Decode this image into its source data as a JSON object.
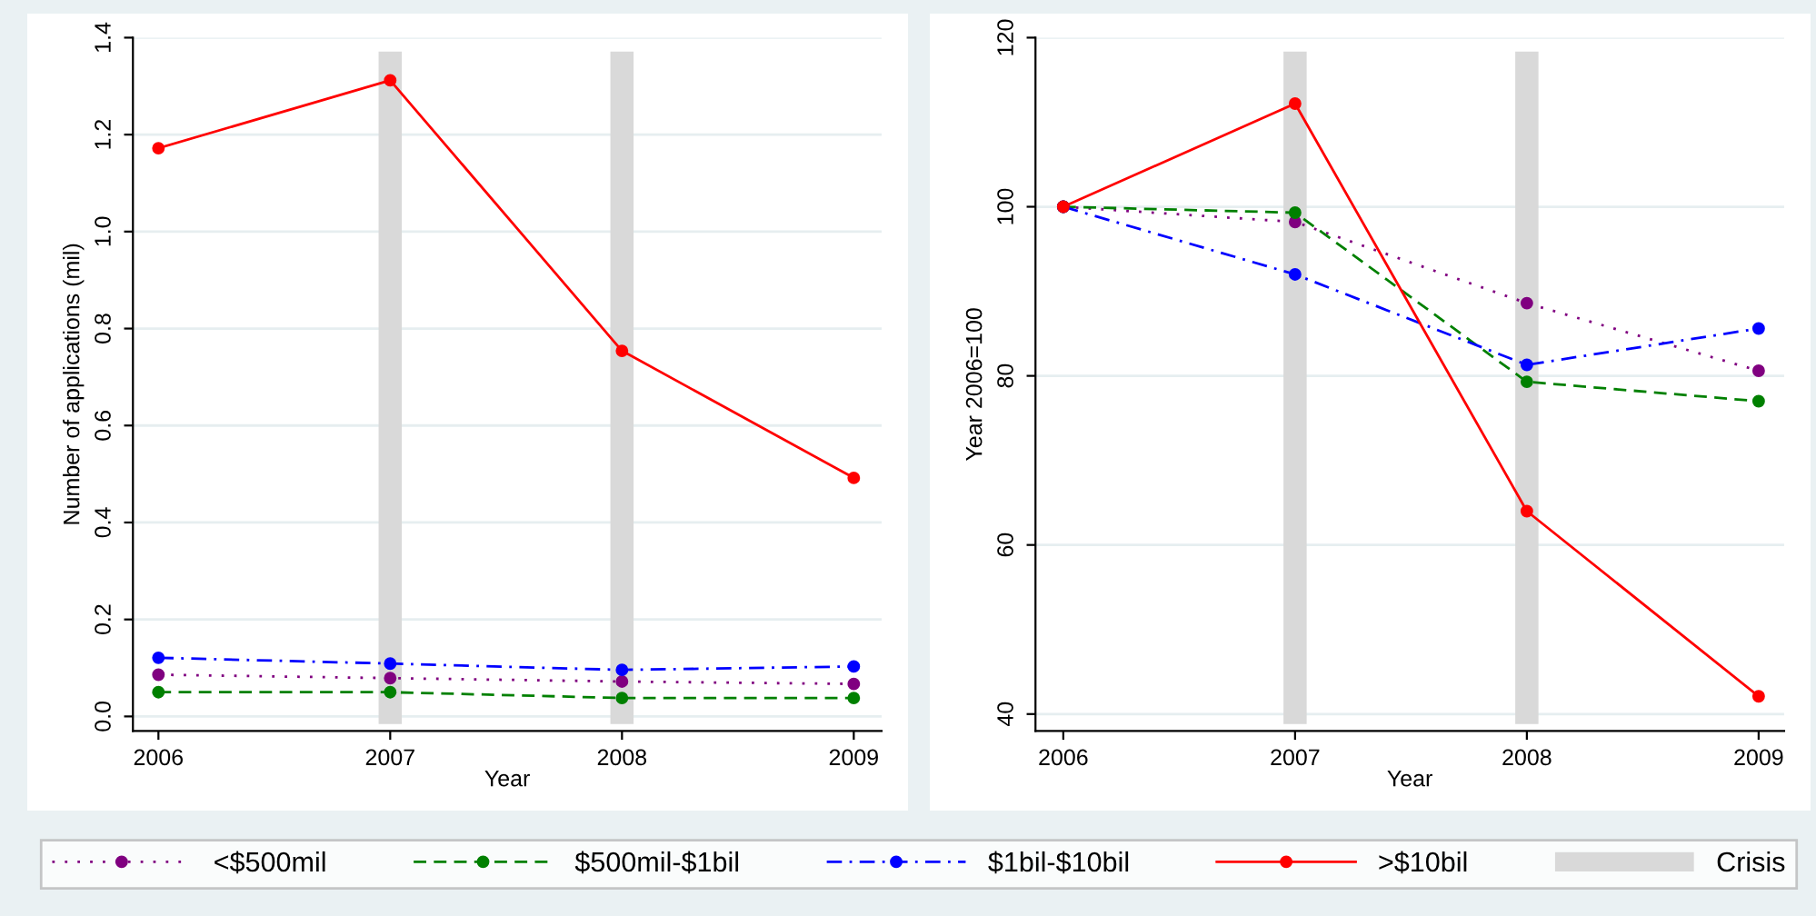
{
  "chart_data": [
    {
      "type": "line",
      "xlabel": "Year",
      "ylabel": "Number of applications (mil)",
      "x": [
        2006,
        2007,
        2008,
        2009
      ],
      "xlim": [
        2005.89,
        2009.12
      ],
      "xticks": [
        2006,
        2007,
        2008,
        2009
      ],
      "ylim": [
        -0.03,
        1.4
      ],
      "yticks": [
        {
          "value": 0,
          "label": "0.0"
        },
        0.2,
        0.4,
        0.6,
        0.8,
        {
          "value": 1,
          "label": "1.0"
        },
        1.2,
        1.4
      ],
      "grid": "y",
      "legend": "bottom",
      "marker": "circle",
      "bands": [
        {
          "axis": "x",
          "from": 2006.95,
          "to": 2007.05,
          "label": "Crisis",
          "color": "#d9d9d9"
        },
        {
          "axis": "x",
          "from": 2007.95,
          "to": 2008.05,
          "color": "#d9d9d9"
        }
      ],
      "series": [
        {
          "name": "<$500mil",
          "color": "#800080",
          "line_style": "dotted",
          "values": [
            0.086,
            0.079,
            0.072,
            0.067
          ]
        },
        {
          "name": "$500mil-$1bil",
          "color": "#008000",
          "line_style": "dashed",
          "values": [
            0.05,
            0.05,
            0.038,
            0.038
          ]
        },
        {
          "name": "$1bil-$10bil",
          "color": "#0000ff",
          "line_style": "dashdot",
          "values": [
            0.121,
            0.109,
            0.096,
            0.103
          ]
        },
        {
          "name": ">$10bil",
          "color": "#ff0000",
          "line_style": "solid",
          "values": [
            1.172,
            1.312,
            0.754,
            0.492
          ]
        }
      ]
    },
    {
      "type": "line",
      "xlabel": "Year",
      "ylabel": "Year 2006=100",
      "x": [
        2006,
        2007,
        2008,
        2009
      ],
      "xlim": [
        2005.88,
        2009.11
      ],
      "xticks": [
        2006,
        2007,
        2008,
        2009
      ],
      "ylim": [
        38,
        120
      ],
      "yticks": [
        40,
        60,
        80,
        100,
        120
      ],
      "grid": "y",
      "marker": "circle",
      "bands": [
        {
          "axis": "x",
          "from": 2006.95,
          "to": 2007.05,
          "color": "#d9d9d9"
        },
        {
          "axis": "x",
          "from": 2007.95,
          "to": 2008.05,
          "color": "#d9d9d9"
        }
      ],
      "series": [
        {
          "color": "#800080",
          "line_style": "dotted",
          "values": [
            100,
            98.2,
            88.6,
            80.6
          ]
        },
        {
          "color": "#008000",
          "line_style": "dashed",
          "values": [
            100,
            99.3,
            79.3,
            77.0
          ]
        },
        {
          "color": "#0000ff",
          "line_style": "dashdot",
          "values": [
            100,
            92.0,
            81.3,
            85.6
          ]
        },
        {
          "color": "#ff0000",
          "line_style": "solid",
          "values": [
            100,
            112.2,
            64.0,
            42.1
          ]
        }
      ]
    }
  ]
}
